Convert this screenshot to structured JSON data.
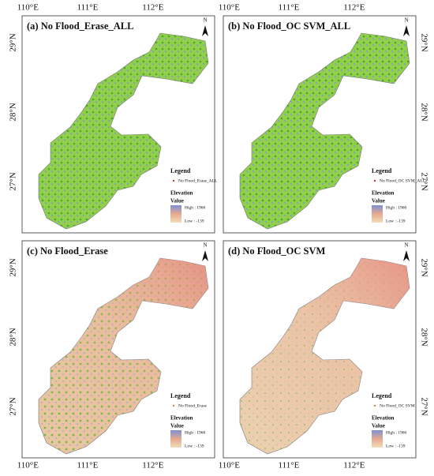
{
  "longitude_labels": [
    "110°E",
    "111°E",
    "112°E"
  ],
  "latitude_labels": [
    "29°N",
    "28°N",
    "27°N"
  ],
  "north": "N",
  "panels": [
    {
      "title": "(a) No Flood_Erase_ALL",
      "legend": {
        "title": "Legend",
        "item": "No Flood_Erase_ALL",
        "elevation": "Elevation",
        "value": "Value",
        "high": "High : 1960",
        "low": "Low : -139"
      }
    },
    {
      "title": "(b) No Flood_OC SVM_ALL",
      "legend": {
        "title": "Legend",
        "item": "No Flood_OC SVM_ALL",
        "elevation": "Elevation",
        "value": "Value",
        "high": "High : 1960",
        "low": "Low : -139"
      }
    },
    {
      "title": "(c) No Flood_Erase",
      "legend": {
        "title": "Legend",
        "item": "No Flood_Erase",
        "elevation": "Elevation",
        "value": "Value",
        "high": "High : 1960",
        "low": "Low : -139"
      }
    },
    {
      "title": "(d) No Flood_OC SVM",
      "legend": {
        "title": "Legend",
        "item": "No Flood_OC SVM",
        "elevation": "Elevation",
        "value": "Value",
        "high": "High : 1960",
        "low": "Low : -139"
      }
    }
  ]
}
